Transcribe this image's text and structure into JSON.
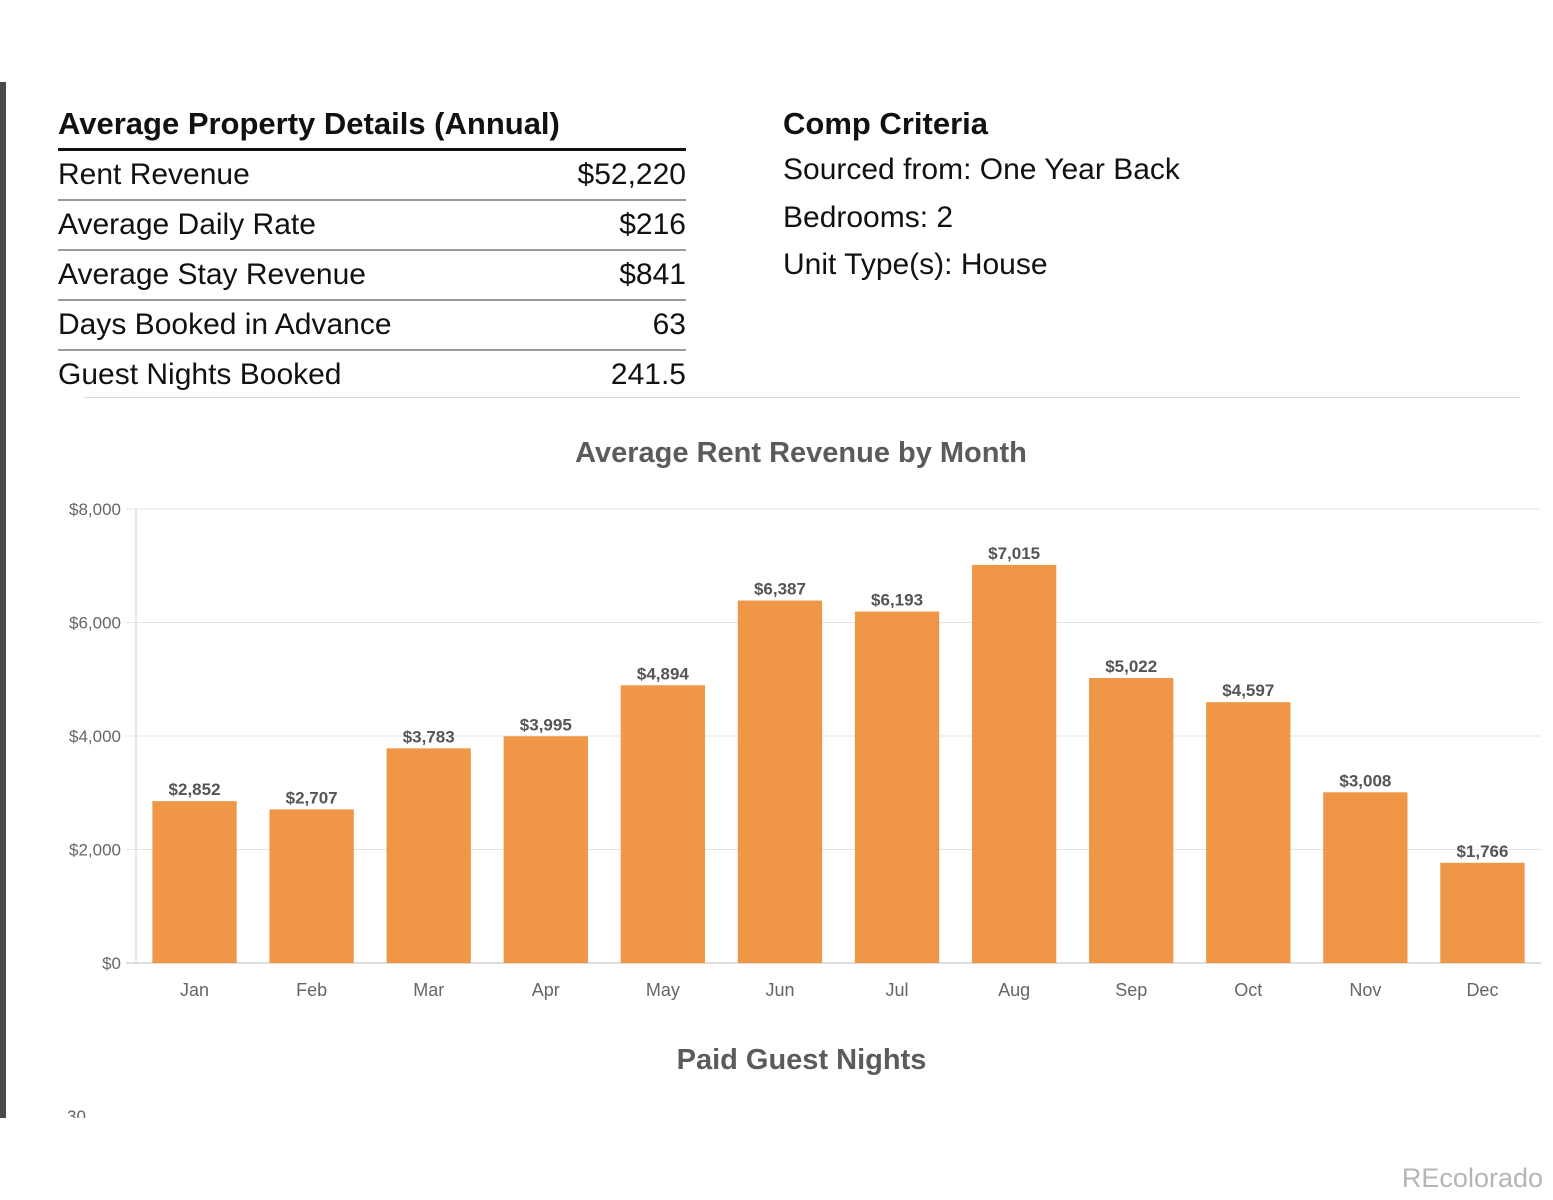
{
  "details": {
    "title": "Average Property Details (Annual)",
    "rows": [
      {
        "label": "Rent Revenue",
        "value": "$52,220"
      },
      {
        "label": "Average Daily Rate",
        "value": "$216"
      },
      {
        "label": "Average Stay Revenue",
        "value": "$841"
      },
      {
        "label": "Days Booked in Advance",
        "value": "63"
      },
      {
        "label": "Guest Nights Booked",
        "value": "241.5"
      }
    ]
  },
  "comp": {
    "title": "Comp Criteria",
    "lines": [
      "Sourced from: One Year Back",
      "Bedrooms: 2",
      "Unit Type(s):  House"
    ]
  },
  "chart_data": {
    "type": "bar",
    "title": "Average Rent Revenue by Month",
    "xlabel": "",
    "ylabel": "",
    "categories": [
      "Jan",
      "Feb",
      "Mar",
      "Apr",
      "May",
      "Jun",
      "Jul",
      "Aug",
      "Sep",
      "Oct",
      "Nov",
      "Dec"
    ],
    "values": [
      2852,
      2707,
      3783,
      3995,
      4894,
      6387,
      6193,
      7015,
      5022,
      4597,
      3008,
      1766
    ],
    "data_labels": [
      "$2,852",
      "$2,707",
      "$3,783",
      "$3,995",
      "$4,894",
      "$6,387",
      "$6,193",
      "$7,015",
      "$5,022",
      "$4,597",
      "$3,008",
      "$1,766"
    ],
    "y_ticks": [
      0,
      2000,
      4000,
      6000,
      8000
    ],
    "y_tick_labels": [
      "$0",
      "$2,000",
      "$4,000",
      "$6,000",
      "$8,000"
    ],
    "ylim": [
      0,
      8000
    ],
    "grid": true,
    "legend": "none",
    "bar_color": "#ef9746"
  },
  "second_chart": {
    "title": "Paid Guest Nights",
    "partial_tick": "30"
  },
  "watermark": "REcolorado"
}
